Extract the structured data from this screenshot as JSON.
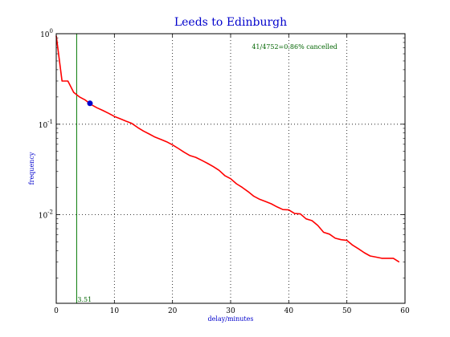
{
  "chart_data": {
    "type": "line",
    "title": "Leeds to Edinburgh",
    "xlabel": "delay/minutes",
    "ylabel": "frequency",
    "xlim": [
      0,
      60
    ],
    "ylim": [
      0.00105,
      1.0
    ],
    "yscale": "log",
    "grid": true,
    "x_ticks": [
      0,
      10,
      20,
      30,
      40,
      50,
      60
    ],
    "y_ticks": [
      {
        "value": 1.0,
        "base": "10",
        "exp": "0"
      },
      {
        "value": 0.1,
        "base": "10",
        "exp": "-1"
      },
      {
        "value": 0.01,
        "base": "10",
        "exp": "-2"
      }
    ],
    "series": [
      {
        "color": "#ff0000",
        "x": [
          0,
          1,
          2,
          3,
          4,
          5,
          6,
          7,
          8,
          9,
          10,
          11,
          12,
          13,
          14,
          15,
          16,
          17,
          18,
          19,
          20,
          21,
          22,
          23,
          24,
          25,
          26,
          27,
          28,
          29,
          30,
          31,
          32,
          33,
          34,
          35,
          36,
          37,
          38,
          39,
          40,
          41,
          42,
          43,
          44,
          45,
          46,
          47,
          48,
          49,
          50,
          51,
          52,
          53,
          54,
          55,
          56,
          57,
          58,
          59
        ],
        "y": [
          0.95,
          0.3,
          0.3,
          0.225,
          0.2,
          0.185,
          0.165,
          0.152,
          0.142,
          0.132,
          0.122,
          0.115,
          0.108,
          0.102,
          0.092,
          0.084,
          0.078,
          0.072,
          0.068,
          0.064,
          0.059,
          0.054,
          0.049,
          0.045,
          0.043,
          0.04,
          0.037,
          0.034,
          0.031,
          0.027,
          0.025,
          0.022,
          0.02,
          0.018,
          0.016,
          0.0148,
          0.014,
          0.0132,
          0.0122,
          0.0114,
          0.0113,
          0.0103,
          0.0102,
          0.009,
          0.0086,
          0.0076,
          0.0064,
          0.0061,
          0.0055,
          0.0053,
          0.0052,
          0.0046,
          0.0042,
          0.0038,
          0.0035,
          0.0034,
          0.0033,
          0.0033,
          0.0033,
          0.003
        ]
      }
    ],
    "marker": {
      "x": 5.8,
      "y": 0.17,
      "color": "#0000cc"
    },
    "vline": {
      "x": 3.51,
      "label": "3.51",
      "color": "#007700"
    },
    "annotation": {
      "text": "41/4752=0.86% cancelled",
      "x": 41,
      "y": 0.68,
      "color": "#006400"
    }
  }
}
